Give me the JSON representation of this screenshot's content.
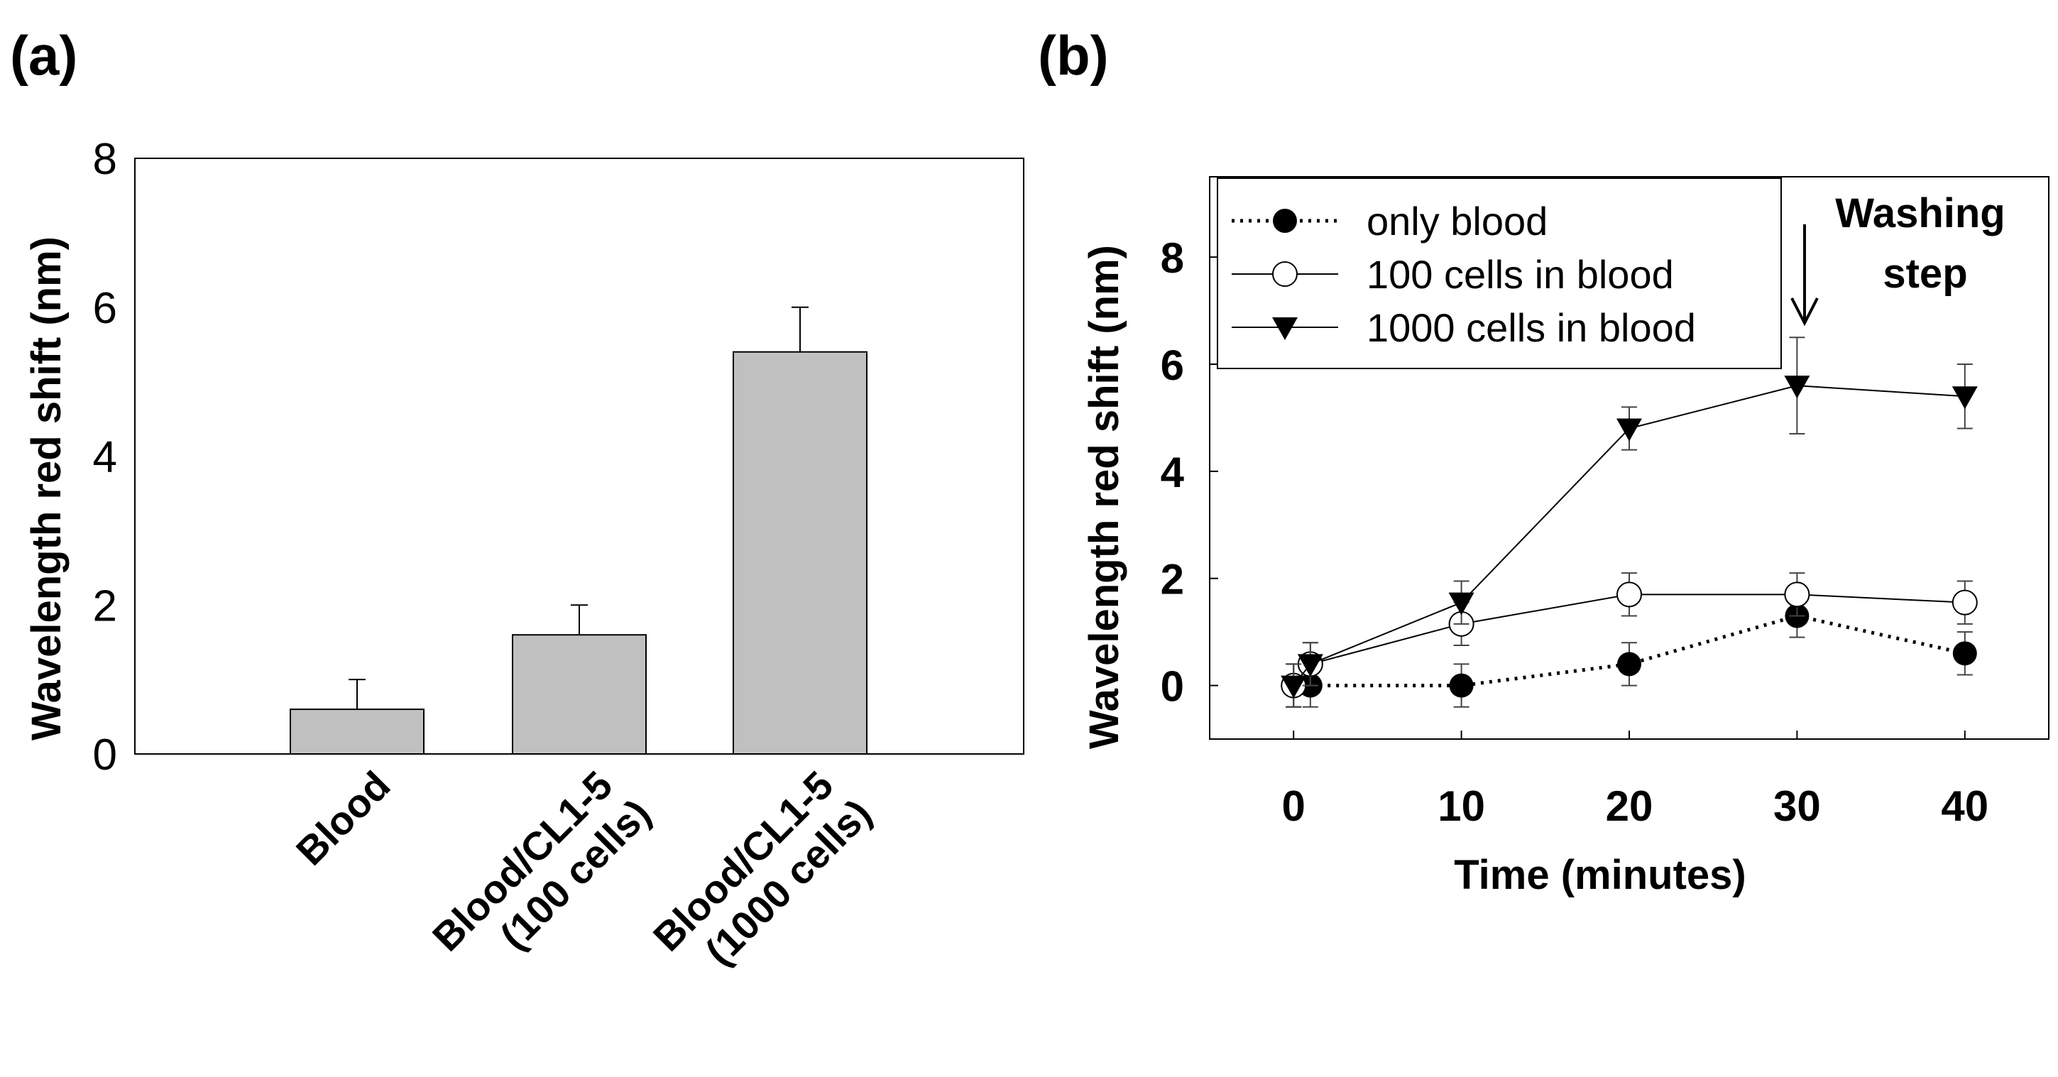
{
  "chart_data": [
    {
      "panel_label": "(a)",
      "type": "bar",
      "title": "",
      "xlabel": "",
      "ylabel": "Wavelength red shift (nm)",
      "ylim": [
        0,
        8
      ],
      "yticks": [
        "0",
        "2",
        "4",
        "6",
        "8"
      ],
      "categories": [
        "Blood",
        "Blood/CL1-5\n(100 cells)",
        "Blood/CL1-5\n(1000 cells)"
      ],
      "category_lines": [
        [
          "Blood"
        ],
        [
          "Blood/CL1-5",
          "(100 cells)"
        ],
        [
          "Blood/CL1-5",
          "(1000 cells)"
        ]
      ],
      "values": [
        0.6,
        1.6,
        5.4
      ],
      "errors": [
        0.4,
        0.4,
        0.6
      ],
      "bar_color": "#c0c0c0"
    },
    {
      "panel_label": "(b)",
      "type": "line",
      "xlabel": "Time (minutes)",
      "ylabel": "Wavelength red shift (nm)",
      "xlim": [
        -5,
        45
      ],
      "ylim": [
        -1,
        9.5
      ],
      "xticks": [
        "0",
        "10",
        "20",
        "30",
        "40"
      ],
      "yticks": [
        "0",
        "2",
        "4",
        "6",
        "8"
      ],
      "legend_position": "top-left",
      "annotation": {
        "lines": [
          "Washing",
          "step"
        ],
        "x": 30
      },
      "series": [
        {
          "name": "only blood",
          "marker": "filled-circle",
          "style": "dotted",
          "x": [
            0,
            1,
            10,
            20,
            30,
            40
          ],
          "y": [
            0,
            0,
            0,
            0.4,
            1.3,
            0.6
          ],
          "err": [
            0.4,
            0.4,
            0.4,
            0.4,
            0.4,
            0.4
          ]
        },
        {
          "name": "100 cells in blood",
          "marker": "open-circle",
          "style": "solid",
          "x": [
            0,
            1,
            10,
            20,
            30,
            40
          ],
          "y": [
            0,
            0.4,
            1.15,
            1.7,
            1.7,
            1.55
          ],
          "err": [
            0.4,
            0.4,
            0.4,
            0.4,
            0.4,
            0.4
          ]
        },
        {
          "name": "1000 cells in blood",
          "marker": "filled-triangle-down",
          "style": "solid",
          "x": [
            0,
            1,
            10,
            20,
            30,
            40
          ],
          "y": [
            0,
            0.4,
            1.55,
            4.8,
            5.6,
            5.4
          ],
          "err": [
            0.4,
            0.4,
            0.4,
            0.4,
            0.9,
            0.6
          ]
        }
      ]
    }
  ]
}
